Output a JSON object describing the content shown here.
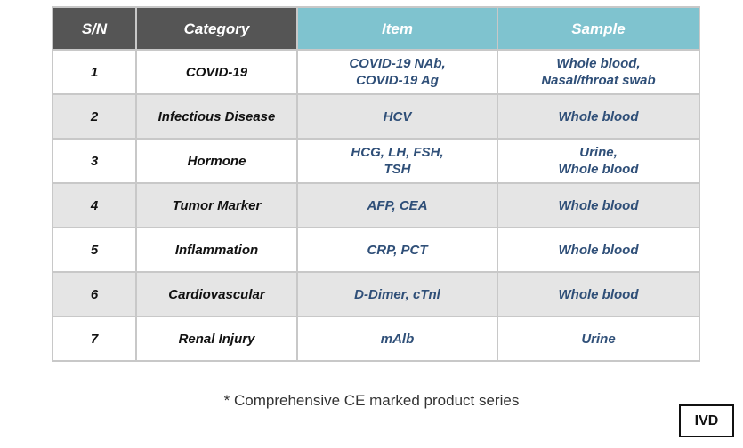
{
  "table": {
    "headers": [
      "S/N",
      "Category",
      "Item",
      "Sample"
    ],
    "rows": [
      {
        "sn": "1",
        "category": "COVID-19",
        "item": [
          "COVID-19 NAb,",
          "COVID-19 Ag"
        ],
        "sample": [
          "Whole blood,",
          "Nasal/throat swab"
        ]
      },
      {
        "sn": "2",
        "category": "Infectious Disease",
        "item": [
          "HCV"
        ],
        "sample": [
          "Whole blood"
        ]
      },
      {
        "sn": "3",
        "category": "Hormone",
        "item": [
          "HCG, LH, FSH,",
          "TSH"
        ],
        "sample": [
          "Urine,",
          "Whole blood"
        ]
      },
      {
        "sn": "4",
        "category": "Tumor Marker",
        "item": [
          "AFP, CEA"
        ],
        "sample": [
          "Whole blood"
        ]
      },
      {
        "sn": "5",
        "category": "Inflammation",
        "item": [
          "CRP, PCT"
        ],
        "sample": [
          "Whole blood"
        ]
      },
      {
        "sn": "6",
        "category": "Cardiovascular",
        "item": [
          "D-Dimer, cTnl"
        ],
        "sample": [
          "Whole blood"
        ]
      },
      {
        "sn": "7",
        "category": "Renal Injury",
        "item": [
          "mAlb"
        ],
        "sample": [
          "Urine"
        ]
      }
    ]
  },
  "footnote": "* Comprehensive CE marked product series",
  "badge": "IVD",
  "colors": {
    "header_dark": "#555555",
    "header_teal": "#7fc3cf",
    "row_alt": "#e5e5e5",
    "item_text": "#2f4f78"
  }
}
